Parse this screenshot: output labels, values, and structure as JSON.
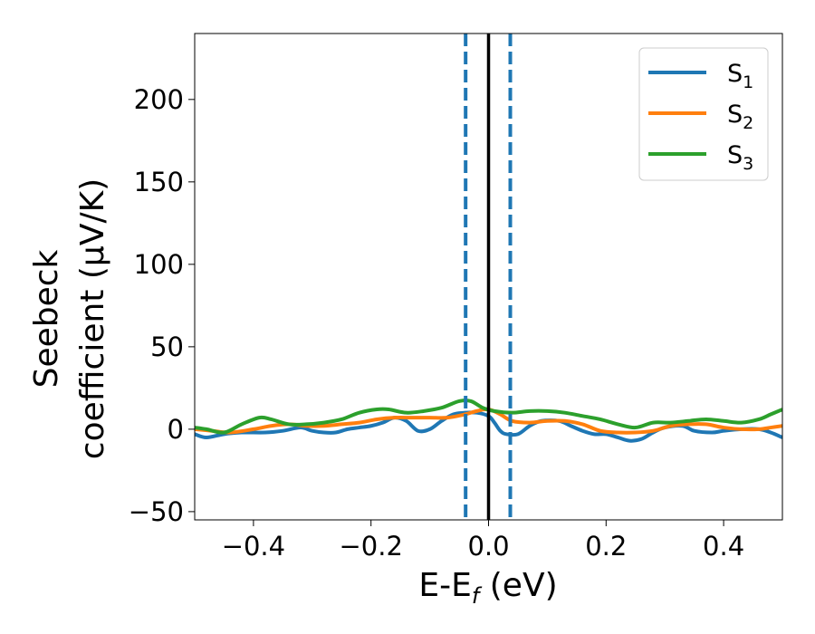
{
  "chart_data": {
    "type": "line",
    "xlabel": {
      "main": "E-E",
      "sub": "f",
      "tail": " (eV)"
    },
    "ylabel": {
      "line1": "Seebeck",
      "line2": "coefficient  (μV/K)"
    },
    "xlim": [
      -0.5,
      0.5
    ],
    "ylim": [
      -55,
      240
    ],
    "xticks": [
      -0.4,
      -0.2,
      0.0,
      0.2,
      0.4
    ],
    "xtick_labels": [
      "−0.4",
      "−0.2",
      "0.0",
      "0.2",
      "0.4"
    ],
    "yticks": [
      -50,
      0,
      50,
      100,
      150,
      200
    ],
    "ytick_labels": [
      "−50",
      "0",
      "50",
      "100",
      "150",
      "200"
    ],
    "legend_position": "top-right",
    "grid": false,
    "vlines": [
      {
        "x": 0.0,
        "style": "solid",
        "color": "#000000"
      },
      {
        "x": -0.039,
        "style": "dashed",
        "color": "#1f77b4"
      },
      {
        "x": 0.037,
        "style": "dashed",
        "color": "#1f77b4"
      }
    ],
    "series": [
      {
        "name": "S",
        "sub": "1",
        "color": "#1f77b4",
        "x": [
          -0.5,
          -0.48,
          -0.45,
          -0.42,
          -0.38,
          -0.35,
          -0.32,
          -0.3,
          -0.28,
          -0.26,
          -0.24,
          -0.22,
          -0.2,
          -0.18,
          -0.16,
          -0.14,
          -0.12,
          -0.1,
          -0.08,
          -0.06,
          -0.04,
          -0.02,
          0.0,
          0.01,
          0.02,
          0.03,
          0.05,
          0.07,
          0.09,
          0.12,
          0.14,
          0.16,
          0.18,
          0.2,
          0.22,
          0.24,
          0.26,
          0.28,
          0.3,
          0.33,
          0.35,
          0.38,
          0.4,
          0.43,
          0.46,
          0.48,
          0.5
        ],
        "y": [
          -3,
          -5,
          -3,
          -2,
          -2,
          -1,
          1,
          -1,
          -2,
          -2,
          0,
          1,
          2,
          4,
          7,
          5,
          -1,
          0,
          5,
          9,
          10,
          10,
          8,
          4,
          -1,
          -3,
          -3,
          2,
          5,
          5,
          2,
          -1,
          -3,
          -3,
          -5,
          -7,
          -6,
          -2,
          1,
          2,
          -1,
          -2,
          -1,
          0,
          0,
          -2,
          -5
        ]
      },
      {
        "name": "S",
        "sub": "2",
        "color": "#ff7f0e",
        "x": [
          -0.5,
          -0.47,
          -0.44,
          -0.4,
          -0.37,
          -0.34,
          -0.31,
          -0.28,
          -0.25,
          -0.22,
          -0.19,
          -0.16,
          -0.13,
          -0.1,
          -0.07,
          -0.04,
          -0.02,
          0.0,
          0.02,
          0.04,
          0.07,
          0.1,
          0.13,
          0.16,
          0.19,
          0.22,
          0.25,
          0.28,
          0.31,
          0.34,
          0.37,
          0.4,
          0.43,
          0.46,
          0.48,
          0.5
        ],
        "y": [
          0,
          -1,
          -2,
          0,
          2,
          3,
          2,
          2,
          3,
          4,
          6,
          7,
          7,
          7,
          7,
          9,
          11,
          12,
          9,
          5,
          4,
          5,
          5,
          3,
          -1,
          -2,
          -2,
          -1,
          2,
          3,
          3,
          1,
          0,
          0,
          1,
          2
        ]
      },
      {
        "name": "S",
        "sub": "3",
        "color": "#2ca02c",
        "x": [
          -0.5,
          -0.48,
          -0.45,
          -0.42,
          -0.39,
          -0.37,
          -0.34,
          -0.31,
          -0.28,
          -0.25,
          -0.22,
          -0.19,
          -0.17,
          -0.14,
          -0.11,
          -0.08,
          -0.05,
          -0.03,
          -0.01,
          0.01,
          0.04,
          0.07,
          0.1,
          0.13,
          0.16,
          0.19,
          0.22,
          0.25,
          0.28,
          0.31,
          0.34,
          0.37,
          0.4,
          0.43,
          0.46,
          0.48,
          0.5
        ],
        "y": [
          1,
          0,
          -2,
          3,
          7,
          6,
          3,
          3,
          4,
          6,
          10,
          12,
          12,
          10,
          11,
          13,
          17,
          17,
          13,
          11,
          10,
          11,
          11,
          10,
          8,
          6,
          3,
          1,
          4,
          4,
          5,
          6,
          5,
          4,
          6,
          9,
          12
        ]
      }
    ]
  }
}
